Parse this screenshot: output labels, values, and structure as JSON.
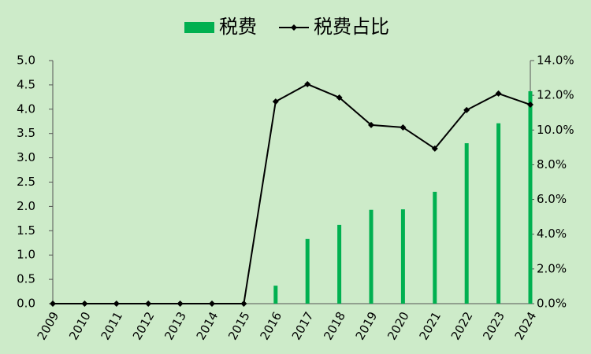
{
  "chart_data": {
    "type": "bar-line",
    "categories": [
      "2009",
      "2010",
      "2011",
      "2012",
      "2013",
      "2014",
      "2015",
      "2016",
      "2017",
      "2018",
      "2019",
      "2020",
      "2021",
      "2022",
      "2023",
      "2024"
    ],
    "series": [
      {
        "name": "税费",
        "type": "bar",
        "color": "#00b050",
        "values": [
          0,
          0,
          0,
          0,
          0,
          0,
          0,
          0.37,
          1.33,
          1.62,
          1.93,
          1.94,
          2.3,
          3.3,
          3.71,
          4.37
        ]
      },
      {
        "name": "税费占比",
        "type": "line",
        "axis": "y2",
        "color": "#000000",
        "values": [
          0,
          0,
          0,
          0,
          0,
          0,
          0,
          11.64,
          12.64,
          11.87,
          10.29,
          10.15,
          8.93,
          11.15,
          12.1,
          11.46
        ]
      }
    ],
    "ylim": [
      0,
      5
    ],
    "yticks": [
      {
        "value": 0,
        "label": "0.0"
      },
      {
        "value": 0.5,
        "label": "0.5"
      },
      {
        "value": 1,
        "label": "1.0"
      },
      {
        "value": 1.5,
        "label": "1.5"
      },
      {
        "value": 2,
        "label": "2.0"
      },
      {
        "value": 2.5,
        "label": "2.5"
      },
      {
        "value": 3,
        "label": "3.0"
      },
      {
        "value": 3.5,
        "label": "3.5"
      },
      {
        "value": 4,
        "label": "4.0"
      },
      {
        "value": 4.5,
        "label": "4.5"
      },
      {
        "value": 5,
        "label": "5.0"
      }
    ],
    "y2lim": [
      0,
      14
    ],
    "y2ticks": [
      {
        "value": 0,
        "label": "0.0%"
      },
      {
        "value": 2,
        "label": "2.0%"
      },
      {
        "value": 4,
        "label": "4.0%"
      },
      {
        "value": 6,
        "label": "6.0%"
      },
      {
        "value": 8,
        "label": "8.0%"
      },
      {
        "value": 10,
        "label": "10.0%"
      },
      {
        "value": 12,
        "label": "12.0%"
      },
      {
        "value": 14,
        "label": "14.0%"
      }
    ],
    "legend": "top"
  }
}
